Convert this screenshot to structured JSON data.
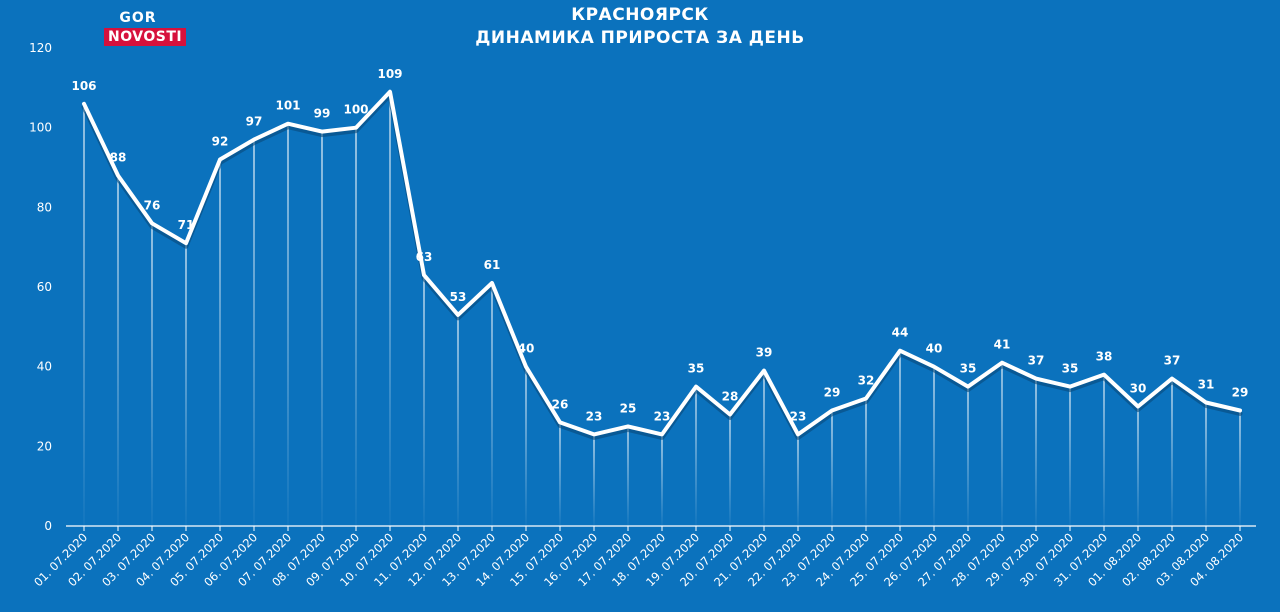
{
  "logo": {
    "top": "GOR",
    "bottom": "NOVOSTI",
    "accent": "#d6113c"
  },
  "header": {
    "line1": "КРАСНОЯРСК",
    "line2": "ДИНАМИКА ПРИРОСТА ЗА ДЕНЬ"
  },
  "colors": {
    "background": "#0b72bd",
    "line": "#ffffff",
    "text": "#ffffff"
  },
  "chart_data": {
    "type": "line",
    "title": "КРАСНОЯРСК ДИНАМИКА ПРИРОСТА ЗА ДЕНЬ",
    "xlabel": "",
    "ylabel": "",
    "ylim": [
      0,
      120
    ],
    "yticks": [
      0,
      20,
      40,
      60,
      80,
      100,
      120
    ],
    "grid": false,
    "categories": [
      "01. 07.2020",
      "02. 07.2020",
      "03. 07.2020",
      "04. 07.2020",
      "05. 07.2020",
      "06. 07.2020",
      "07. 07.2020",
      "08. 07.2020",
      "09. 07.2020",
      "10. 07.2020",
      "11. 07.2020",
      "12. 07.2020",
      "13. 07.2020",
      "14. 07.2020",
      "15. 07.2020",
      "16. 07.2020",
      "17. 07.2020",
      "18. 07.2020",
      "19. 07.2020",
      "20. 07.2020",
      "21. 07.2020",
      "22. 07.2020",
      "23. 07.2020",
      "24. 07.2020",
      "25. 07.2020",
      "26. 07.2020",
      "27. 07.2020",
      "28. 07.2020",
      "29. 07.2020",
      "30. 07.2020",
      "31. 07.2020",
      "01. 08.2020",
      "02. 08.2020",
      "03. 08.2020",
      "04. 08.2020"
    ],
    "values": [
      106,
      88,
      76,
      71,
      92,
      97,
      101,
      99,
      100,
      109,
      63,
      53,
      61,
      40,
      26,
      23,
      25,
      23,
      35,
      28,
      39,
      23,
      29,
      32,
      44,
      40,
      35,
      41,
      37,
      35,
      38,
      30,
      37,
      31,
      29
    ]
  }
}
